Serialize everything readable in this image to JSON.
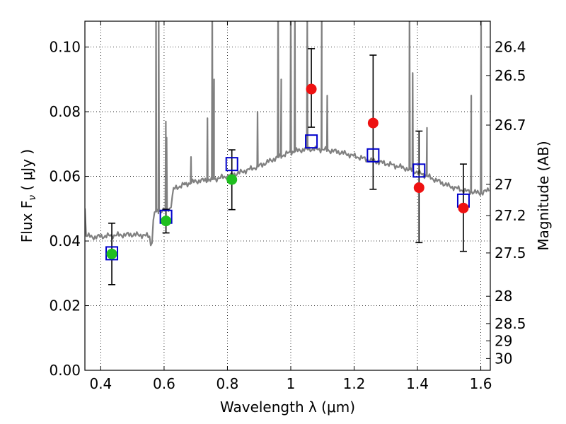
{
  "chart_data": {
    "type": "scatter",
    "xlabel": "Wavelength  λ (μm)",
    "ylabel_main": "Flux  F",
    "ylabel_sub": "ν",
    "ylabel_unit": " ( μJy )",
    "y2label": "Magnitude (AB)",
    "xlim": [
      0.35,
      1.63
    ],
    "ylim": [
      0.0,
      0.108
    ],
    "grid": true,
    "x_ticks": [
      {
        "value": 0.4,
        "label": "0.4"
      },
      {
        "value": 0.6,
        "label": "0.6"
      },
      {
        "value": 0.8,
        "label": "0.8"
      },
      {
        "value": 1.0,
        "label": "1"
      },
      {
        "value": 1.2,
        "label": "1.2"
      },
      {
        "value": 1.4,
        "label": "1.4"
      },
      {
        "value": 1.6,
        "label": "1.6"
      }
    ],
    "y_ticks": [
      {
        "value": 0.0,
        "label": "0.00"
      },
      {
        "value": 0.02,
        "label": "0.02"
      },
      {
        "value": 0.04,
        "label": "0.04"
      },
      {
        "value": 0.06,
        "label": "0.06"
      },
      {
        "value": 0.08,
        "label": "0.08"
      },
      {
        "value": 0.1,
        "label": "0.10"
      }
    ],
    "mag_ticks": [
      {
        "value": 26.4,
        "label": "26.4"
      },
      {
        "value": 26.5,
        "label": "26.5"
      },
      {
        "value": 26.7,
        "label": "26.7"
      },
      {
        "value": 27.0,
        "label": "27"
      },
      {
        "value": 27.2,
        "label": "27.2"
      },
      {
        "value": 27.5,
        "label": "27.5"
      },
      {
        "value": 28.0,
        "label": "28"
      },
      {
        "value": 28.5,
        "label": "28.5"
      },
      {
        "value": 29.0,
        "label": "29"
      },
      {
        "value": 30.0,
        "label": "30"
      }
    ],
    "colors": {
      "spectrum": "#808080",
      "green": "#1fbf1f",
      "red": "#ee1111",
      "box": "#0000cc",
      "errorbar": "#000000",
      "grid": "#000000"
    },
    "green_points": [
      {
        "x": 0.435,
        "y": 0.036,
        "err_low": 0.0265,
        "err_high": 0.0455
      },
      {
        "x": 0.606,
        "y": 0.0462,
        "err_low": 0.0425,
        "err_high": 0.0498
      },
      {
        "x": 0.814,
        "y": 0.059,
        "err_low": 0.0497,
        "err_high": 0.0682
      }
    ],
    "red_points": [
      {
        "x": 1.065,
        "y": 0.087,
        "err_low": 0.0752,
        "err_high": 0.0995
      },
      {
        "x": 1.26,
        "y": 0.0765,
        "err_low": 0.056,
        "err_high": 0.0975
      },
      {
        "x": 1.405,
        "y": 0.0565,
        "err_low": 0.0395,
        "err_high": 0.074
      },
      {
        "x": 1.545,
        "y": 0.0502,
        "err_low": 0.0368,
        "err_high": 0.0638
      }
    ],
    "model_boxes": [
      {
        "x": 0.435,
        "y": 0.0362
      },
      {
        "x": 0.606,
        "y": 0.0475
      },
      {
        "x": 0.814,
        "y": 0.0638
      },
      {
        "x": 1.065,
        "y": 0.0708
      },
      {
        "x": 1.26,
        "y": 0.0665
      },
      {
        "x": 1.405,
        "y": 0.0618
      },
      {
        "x": 1.545,
        "y": 0.0525
      }
    ],
    "spectrum": {
      "continuum": [
        [
          0.35,
          0.05
        ],
        [
          0.352,
          0.042
        ],
        [
          0.37,
          0.0412
        ],
        [
          0.4,
          0.0414
        ],
        [
          0.45,
          0.0418
        ],
        [
          0.5,
          0.042
        ],
        [
          0.53,
          0.0418
        ],
        [
          0.555,
          0.0415
        ],
        [
          0.56,
          0.037
        ],
        [
          0.565,
          0.045
        ],
        [
          0.57,
          0.049
        ],
        [
          0.6,
          0.0495
        ],
        [
          0.62,
          0.05
        ],
        [
          0.63,
          0.056
        ],
        [
          0.65,
          0.057
        ],
        [
          0.7,
          0.0585
        ],
        [
          0.75,
          0.059
        ],
        [
          0.8,
          0.06
        ],
        [
          0.85,
          0.0615
        ],
        [
          0.9,
          0.0632
        ],
        [
          0.95,
          0.0655
        ],
        [
          1.0,
          0.0675
        ],
        [
          1.05,
          0.0685
        ],
        [
          1.1,
          0.0683
        ],
        [
          1.15,
          0.0676
        ],
        [
          1.2,
          0.0663
        ],
        [
          1.25,
          0.065
        ],
        [
          1.3,
          0.064
        ],
        [
          1.35,
          0.0628
        ],
        [
          1.38,
          0.062
        ],
        [
          1.42,
          0.0605
        ],
        [
          1.45,
          0.0592
        ],
        [
          1.5,
          0.057
        ],
        [
          1.55,
          0.0555
        ],
        [
          1.6,
          0.0548
        ],
        [
          1.62,
          0.0555
        ],
        [
          1.63,
          0.0565
        ]
      ],
      "lines": [
        [
          0.5745,
          0.115
        ],
        [
          0.583,
          0.115
        ],
        [
          0.6055,
          0.077
        ],
        [
          0.608,
          0.072
        ],
        [
          0.665,
          0.058
        ],
        [
          0.685,
          0.066
        ],
        [
          0.737,
          0.078
        ],
        [
          0.752,
          0.115
        ],
        [
          0.758,
          0.09
        ],
        [
          0.895,
          0.08
        ],
        [
          0.96,
          0.115
        ],
        [
          0.97,
          0.09
        ],
        [
          1.0,
          0.115
        ],
        [
          1.013,
          0.115
        ],
        [
          1.052,
          0.108
        ],
        [
          1.098,
          0.115
        ],
        [
          1.115,
          0.085
        ],
        [
          1.375,
          0.115
        ],
        [
          1.385,
          0.092
        ],
        [
          1.43,
          0.075
        ],
        [
          1.57,
          0.085
        ],
        [
          1.601,
          0.108
        ]
      ]
    }
  }
}
